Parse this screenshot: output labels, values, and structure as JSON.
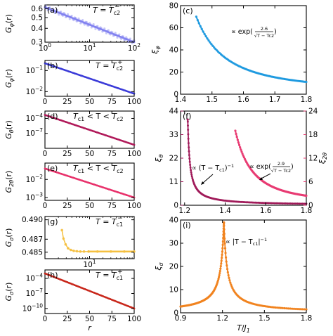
{
  "colors": {
    "phi_minus": "#8080f0",
    "phi_plus": "#3a3ad8",
    "theta": "#b0195a",
    "two_theta": "#e8306a",
    "sigma_minus": "#f5c040",
    "sigma_plus": "#c8261a",
    "xi_phi": "#1f9adf",
    "xi_theta": "#a01a5a",
    "xi_2theta": "#e83a72",
    "xi_sigma": "#f0831f"
  },
  "chart_data": [
    {
      "id": "a",
      "type": "scatter",
      "panel_label": "(a)",
      "condition": "T = T",
      "condition_sub": "c2",
      "condition_sup": "−",
      "ylabel": "G",
      "ylabel_sub": "φ",
      "ylabel_arg": "(r)",
      "xscale": "log",
      "yscale": "log",
      "xlim": [
        1,
        100
      ],
      "ylim": [
        0.3,
        0.65
      ],
      "xticks": [
        "10⁰",
        "10¹",
        "10²"
      ],
      "yticks": [
        "0.6",
        "0.5",
        "0.4",
        "0.3"
      ],
      "series": [
        {
          "x_range": [
            1,
            100
          ],
          "y_range": [
            0.62,
            0.3
          ]
        }
      ]
    },
    {
      "id": "b",
      "type": "scatter",
      "panel_label": "(b)",
      "condition": "T = T",
      "condition_sub": "c2",
      "condition_sup": "+",
      "ylabel": "G",
      "ylabel_sub": "φ",
      "ylabel_arg": "(r)",
      "xscale": "linear",
      "yscale": "log",
      "xlim": [
        0,
        100
      ],
      "ylim": [
        0.006,
        0.3
      ],
      "xticks": [
        "0",
        "25",
        "50",
        "75",
        "100"
      ],
      "yticks": [
        "10⁻¹",
        "10⁻²"
      ],
      "series": [
        {
          "x_range": [
            0,
            100
          ],
          "y_range": [
            0.22,
            0.008
          ]
        }
      ]
    },
    {
      "id": "d",
      "type": "scatter",
      "panel_label": "(d)",
      "condition": "T",
      "ylabel": "G",
      "ylabel_sub": "θ",
      "ylabel_arg": "(r)",
      "xscale": "linear",
      "yscale": "log",
      "xlim": [
        0,
        100
      ],
      "ylim": [
        1e-10,
        0.003
      ],
      "xticks": [
        "0",
        "25",
        "50",
        "75",
        "100"
      ],
      "yticks": [
        "10⁻⁴",
        "10⁻⁷"
      ],
      "series": [
        {
          "x_range": [
            0,
            100
          ],
          "y_range": [
            0.0005,
            5e-10
          ]
        }
      ]
    },
    {
      "id": "e",
      "type": "scatter",
      "panel_label": "(e)",
      "condition": "T",
      "ylabel": "G",
      "ylabel_sub": "2θ",
      "ylabel_arg": "(r)",
      "xscale": "linear",
      "yscale": "log",
      "xlim": [
        0,
        100
      ],
      "ylim": [
        0.0007,
        0.08
      ],
      "xticks": [
        "0",
        "25",
        "50",
        "75",
        "100"
      ],
      "yticks": [
        "10⁻²",
        "10⁻³"
      ],
      "series": [
        {
          "x_range": [
            0,
            100
          ],
          "y_range": [
            0.04,
            0.001
          ]
        }
      ]
    },
    {
      "id": "g",
      "type": "scatter",
      "panel_label": "(g)",
      "condition": "T = T",
      "condition_sub": "c1",
      "condition_sup": "−",
      "ylabel": "G",
      "ylabel_sub": "σ",
      "ylabel_arg": "(r)",
      "xscale": "log",
      "yscale": "linear",
      "xlim": [
        1,
        100
      ],
      "ylim": [
        0.484,
        0.4905
      ],
      "xticks": [
        "10¹"
      ],
      "yticks": [
        "0.490",
        "0.487",
        "0.485"
      ],
      "series": [
        {
          "x": [
            2.4,
            2.6,
            2.9,
            3.3,
            3.8,
            4.4,
            5.2,
            6.2,
            7.5,
            9.5,
            15,
            30,
            60,
            100
          ],
          "y": [
            0.4884,
            0.4871,
            0.4862,
            0.4856,
            0.48535,
            0.4852,
            0.48515,
            0.4851,
            0.4851,
            0.4851,
            0.4851,
            0.4851,
            0.4851,
            0.4851
          ]
        }
      ]
    },
    {
      "id": "h",
      "type": "scatter",
      "panel_label": "(h)",
      "condition": "T = T",
      "condition_sub": "c1",
      "condition_sup": "+",
      "ylabel": "G",
      "ylabel_sub": "σ",
      "ylabel_arg": "(r)",
      "xlabel": "r",
      "xscale": "linear",
      "yscale": "log",
      "xlim": [
        0,
        100
      ],
      "ylim": [
        1e-11,
        0.005
      ],
      "xticks": [
        "0",
        "25",
        "50",
        "75",
        "100"
      ],
      "yticks": [
        "10⁻⁴",
        "10⁻⁷",
        "10⁻¹⁰"
      ],
      "series": [
        {
          "x_range": [
            0,
            100
          ],
          "y_range": [
            0.001,
            1e-10
          ]
        }
      ]
    },
    {
      "id": "c",
      "type": "scatter",
      "panel_label": "(c)",
      "ylabel": "ξ",
      "ylabel_sub": "φ",
      "annotation": "∝ exp(2.6/√(T−T_c2))",
      "xlim": [
        1.4,
        1.8
      ],
      "ylim": [
        0,
        80
      ],
      "xticks": [
        "1.4",
        "1.5",
        "1.6",
        "1.7",
        "1.8"
      ],
      "yticks": [
        "0",
        "20",
        "40",
        "60",
        "80"
      ],
      "series": [
        {
          "model": "exp",
          "a": 2.6,
          "Tc": 1.2,
          "x_range": [
            1.45,
            1.8
          ]
        }
      ]
    },
    {
      "id": "f",
      "type": "scatter",
      "panel_label": "(f)",
      "ylabel": "ξ",
      "ylabel_sub": "θ",
      "ylabel_right": "ξ",
      "ylabel_right_sub": "2θ",
      "annotation_left": "∝ (T − T",
      "annotation_right": "∝ exp(2.9/√(T−T_c2))",
      "xlim": [
        1.18,
        1.8
      ],
      "ylim_left": [
        0,
        44
      ],
      "ylim_right": [
        0,
        24
      ],
      "xticks": [
        "1.2",
        "1.4",
        "1.6",
        "1.8"
      ],
      "yticks_left": [
        "0",
        "11",
        "22",
        "33",
        "44"
      ],
      "yticks_right": [
        "0",
        "6",
        "12",
        "18",
        "24"
      ],
      "series": [
        {
          "name": "ξθ",
          "axis": "left",
          "model": "power",
          "Tc": 1.205,
          "x_range": [
            1.215,
            1.8
          ]
        },
        {
          "name": "ξ2θ",
          "axis": "right",
          "model": "exp",
          "a": 2.9,
          "Tc": 1.2,
          "x_range": [
            1.45,
            1.8
          ]
        }
      ]
    },
    {
      "id": "i",
      "type": "scatter",
      "panel_label": "(i)",
      "ylabel": "ξ",
      "ylabel_sub": "σ",
      "xlabel": "T",
      "xlabel_over": "J",
      "xlabel_over_sub": "1",
      "annotation": "∝ |T − T",
      "xlim": [
        0.9,
        1.8
      ],
      "ylim": [
        0,
        40
      ],
      "xticks": [
        "0.9",
        "1.2",
        "1.5",
        "1.8"
      ],
      "yticks": [
        "0",
        "10",
        "20",
        "30",
        "40"
      ],
      "series": [
        {
          "model": "abs_power",
          "Tc": 1.21,
          "x_range": [
            0.9,
            1.8
          ],
          "peak": 39
        }
      ]
    }
  ]
}
